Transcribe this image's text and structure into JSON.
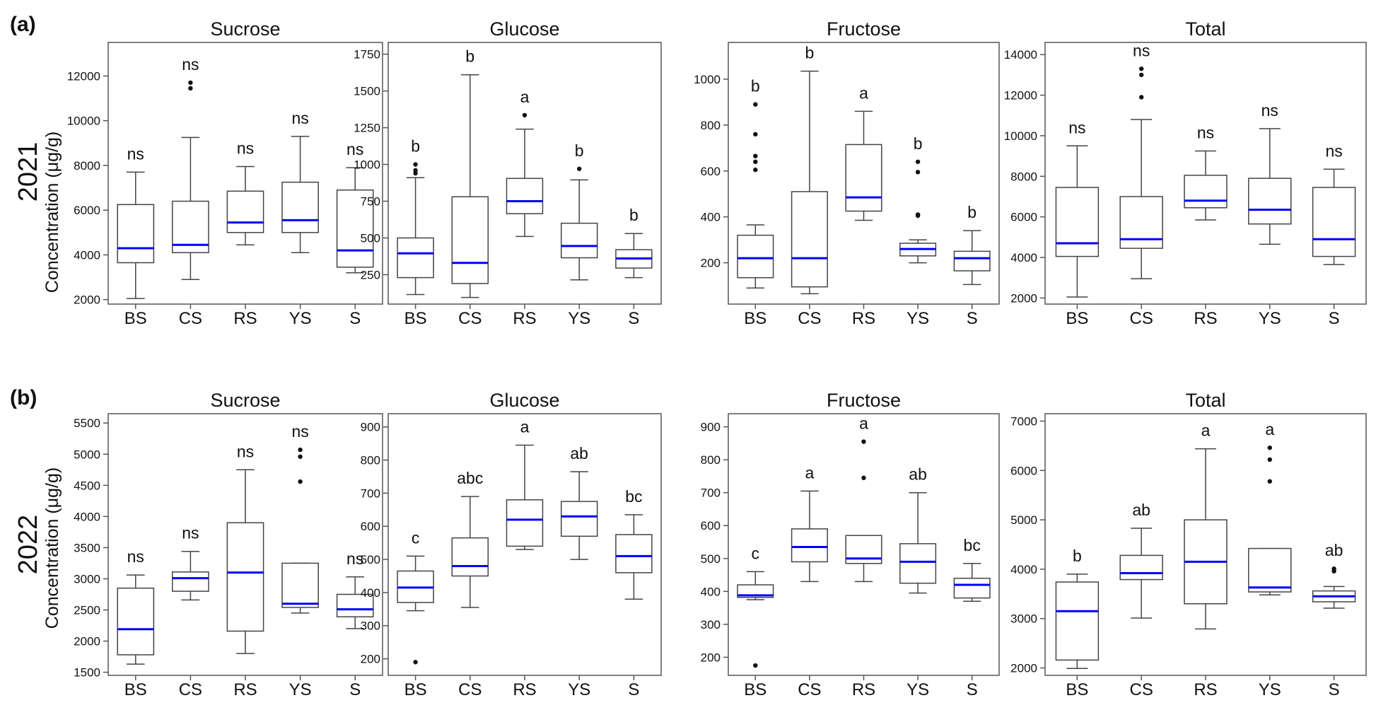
{
  "figure": {
    "rows": [
      {
        "label": "(a)",
        "year": "2021",
        "ylabel": "Concentration (μg/g)"
      },
      {
        "label": "(b)",
        "year": "2022",
        "ylabel": "Concentration (μg/g)"
      }
    ]
  },
  "chart_data": [
    {
      "type": "box",
      "title": "Sucrose",
      "row": 0,
      "categories": [
        "BS",
        "CS",
        "RS",
        "YS",
        "S"
      ],
      "ylim": [
        1800,
        13500
      ],
      "yticks": [
        2000,
        4000,
        6000,
        8000,
        10000,
        12000
      ],
      "median_color": "#0000ff",
      "boxes": [
        {
          "min": 2050,
          "q1": 3650,
          "median": 4300,
          "q3": 6250,
          "max": 7700,
          "outliers": [],
          "label": "ns"
        },
        {
          "min": 2900,
          "q1": 4100,
          "median": 4450,
          "q3": 6400,
          "max": 9250,
          "outliers": [
            11450,
            11700
          ],
          "label": "ns"
        },
        {
          "min": 4450,
          "q1": 5000,
          "median": 5450,
          "q3": 6850,
          "max": 7950,
          "outliers": [],
          "label": "ns"
        },
        {
          "min": 4100,
          "q1": 5000,
          "median": 5550,
          "q3": 7250,
          "max": 9300,
          "outliers": [],
          "label": "ns"
        },
        {
          "min": 3200,
          "q1": 3450,
          "median": 4200,
          "q3": 6900,
          "max": 7900,
          "outliers": [],
          "label": "ns"
        }
      ]
    },
    {
      "type": "box",
      "title": "Glucose",
      "row": 0,
      "categories": [
        "BS",
        "CS",
        "RS",
        "YS",
        "S"
      ],
      "ylim": [
        50,
        1830
      ],
      "yticks": [
        250,
        500,
        750,
        1000,
        1250,
        1500,
        1750
      ],
      "median_color": "#0000ff",
      "boxes": [
        {
          "min": 115,
          "q1": 230,
          "median": 395,
          "q3": 500,
          "max": 910,
          "outliers": [
            940,
            960,
            1000
          ],
          "label": "b"
        },
        {
          "min": 95,
          "q1": 190,
          "median": 330,
          "q3": 780,
          "max": 1610,
          "outliers": [],
          "label": "b"
        },
        {
          "min": 510,
          "q1": 665,
          "median": 750,
          "q3": 905,
          "max": 1240,
          "outliers": [
            1335
          ],
          "label": "a"
        },
        {
          "min": 215,
          "q1": 365,
          "median": 445,
          "q3": 600,
          "max": 895,
          "outliers": [
            970
          ],
          "label": "b"
        },
        {
          "min": 230,
          "q1": 295,
          "median": 360,
          "q3": 420,
          "max": 530,
          "outliers": [],
          "label": "b"
        }
      ]
    },
    {
      "type": "box",
      "title": "Fructose",
      "row": 0,
      "categories": [
        "BS",
        "CS",
        "RS",
        "YS",
        "S"
      ],
      "ylim": [
        20,
        1160
      ],
      "yticks": [
        200,
        400,
        600,
        800,
        1000
      ],
      "median_color": "#0000ff",
      "boxes": [
        {
          "min": 90,
          "q1": 135,
          "median": 220,
          "q3": 320,
          "max": 365,
          "outliers": [
            605,
            640,
            665,
            760,
            890
          ],
          "label": "b"
        },
        {
          "min": 65,
          "q1": 95,
          "median": 220,
          "q3": 510,
          "max": 1035,
          "outliers": [],
          "label": "b"
        },
        {
          "min": 385,
          "q1": 425,
          "median": 485,
          "q3": 715,
          "max": 860,
          "outliers": [],
          "label": "a"
        },
        {
          "min": 200,
          "q1": 230,
          "median": 260,
          "q3": 285,
          "max": 300,
          "outliers": [
            405,
            410,
            595,
            640
          ],
          "label": "b"
        },
        {
          "min": 105,
          "q1": 165,
          "median": 220,
          "q3": 250,
          "max": 340,
          "outliers": [],
          "label": "b"
        }
      ]
    },
    {
      "type": "box",
      "title": "Total",
      "row": 0,
      "categories": [
        "BS",
        "CS",
        "RS",
        "YS",
        "S"
      ],
      "ylim": [
        1700,
        14600
      ],
      "yticks": [
        2000,
        4000,
        6000,
        8000,
        10000,
        12000,
        14000
      ],
      "median_color": "#0000ff",
      "boxes": [
        {
          "min": 2050,
          "q1": 4050,
          "median": 4700,
          "q3": 7450,
          "max": 9500,
          "outliers": [],
          "label": "ns"
        },
        {
          "min": 2950,
          "q1": 4450,
          "median": 4900,
          "q3": 7000,
          "max": 10800,
          "outliers": [
            11900,
            13000,
            13300
          ],
          "label": "ns"
        },
        {
          "min": 5850,
          "q1": 6450,
          "median": 6800,
          "q3": 8050,
          "max": 9250,
          "outliers": [],
          "label": "ns"
        },
        {
          "min": 4650,
          "q1": 5650,
          "median": 6350,
          "q3": 7900,
          "max": 10350,
          "outliers": [],
          "label": "ns"
        },
        {
          "min": 3650,
          "q1": 4050,
          "median": 4900,
          "q3": 7450,
          "max": 8350,
          "outliers": [],
          "label": "ns"
        }
      ]
    },
    {
      "type": "box",
      "title": "Sucrose",
      "row": 1,
      "categories": [
        "BS",
        "CS",
        "RS",
        "YS",
        "S"
      ],
      "ylim": [
        1450,
        5650
      ],
      "yticks": [
        1500,
        2000,
        2500,
        3000,
        3500,
        4000,
        4500,
        5000,
        5500
      ],
      "median_color": "#0000ff",
      "boxes": [
        {
          "min": 1630,
          "q1": 1780,
          "median": 2190,
          "q3": 2850,
          "max": 3060,
          "outliers": [],
          "label": "ns"
        },
        {
          "min": 2660,
          "q1": 2800,
          "median": 3010,
          "q3": 3110,
          "max": 3440,
          "outliers": [],
          "label": "ns"
        },
        {
          "min": 1800,
          "q1": 2160,
          "median": 3100,
          "q3": 3900,
          "max": 4750,
          "outliers": [],
          "label": "ns"
        },
        {
          "min": 2450,
          "q1": 2540,
          "median": 2600,
          "q3": 3250,
          "max": 3250,
          "outliers": [
            4560,
            4960,
            5070
          ],
          "label": "ns"
        },
        {
          "min": 2200,
          "q1": 2390,
          "median": 2510,
          "q3": 2750,
          "max": 3030,
          "outliers": [],
          "label": "ns"
        }
      ]
    },
    {
      "type": "box",
      "title": "Glucose",
      "row": 1,
      "categories": [
        "BS",
        "CS",
        "RS",
        "YS",
        "S"
      ],
      "ylim": [
        150,
        940
      ],
      "yticks": [
        200,
        300,
        400,
        500,
        600,
        700,
        800,
        900
      ],
      "median_color": "#0000ff",
      "boxes": [
        {
          "min": 345,
          "q1": 370,
          "median": 415,
          "q3": 465,
          "max": 510,
          "outliers": [
            190
          ],
          "label": "c"
        },
        {
          "min": 355,
          "q1": 450,
          "median": 480,
          "q3": 565,
          "max": 690,
          "outliers": [],
          "label": "abc"
        },
        {
          "min": 530,
          "q1": 540,
          "median": 620,
          "q3": 680,
          "max": 845,
          "outliers": [],
          "label": "a"
        },
        {
          "min": 500,
          "q1": 570,
          "median": 630,
          "q3": 675,
          "max": 765,
          "outliers": [],
          "label": "ab"
        },
        {
          "min": 380,
          "q1": 460,
          "median": 510,
          "q3": 575,
          "max": 635,
          "outliers": [],
          "label": "bc"
        }
      ]
    },
    {
      "type": "box",
      "title": "Fructose",
      "row": 1,
      "categories": [
        "BS",
        "CS",
        "RS",
        "YS",
        "S"
      ],
      "ylim": [
        145,
        940
      ],
      "yticks": [
        200,
        300,
        400,
        500,
        600,
        700,
        800,
        900
      ],
      "median_color": "#0000ff",
      "boxes": [
        {
          "min": 375,
          "q1": 382,
          "median": 388,
          "q3": 420,
          "max": 460,
          "outliers": [
            175
          ],
          "label": "c"
        },
        {
          "min": 430,
          "q1": 490,
          "median": 535,
          "q3": 590,
          "max": 705,
          "outliers": [],
          "label": "a"
        },
        {
          "min": 430,
          "q1": 485,
          "median": 500,
          "q3": 570,
          "max": 570,
          "outliers": [
            745,
            855
          ],
          "label": "a"
        },
        {
          "min": 395,
          "q1": 425,
          "median": 490,
          "q3": 545,
          "max": 700,
          "outliers": [],
          "label": "ab"
        },
        {
          "min": 370,
          "q1": 380,
          "median": 420,
          "q3": 440,
          "max": 485,
          "outliers": [],
          "label": "bc"
        }
      ]
    },
    {
      "type": "box",
      "title": "Total",
      "row": 1,
      "categories": [
        "BS",
        "CS",
        "RS",
        "YS",
        "S"
      ],
      "ylim": [
        1850,
        7150
      ],
      "yticks": [
        2000,
        3000,
        4000,
        5000,
        6000,
        7000
      ],
      "median_color": "#0000ff",
      "boxes": [
        {
          "min": 1990,
          "q1": 2160,
          "median": 3150,
          "q3": 3740,
          "max": 3900,
          "outliers": [],
          "label": "b"
        },
        {
          "min": 3010,
          "q1": 3790,
          "median": 3920,
          "q3": 4280,
          "max": 4830,
          "outliers": [],
          "label": "ab"
        },
        {
          "min": 2790,
          "q1": 3300,
          "median": 4150,
          "q3": 5000,
          "max": 6440,
          "outliers": [],
          "label": "a"
        },
        {
          "min": 3480,
          "q1": 3540,
          "median": 3630,
          "q3": 4420,
          "max": 4420,
          "outliers": [
            5780,
            6220,
            6460
          ],
          "label": "a"
        },
        {
          "min": 3210,
          "q1": 3340,
          "median": 3450,
          "q3": 3560,
          "max": 3650,
          "outliers": [
            3960,
            4010
          ],
          "label": "ab"
        }
      ]
    }
  ]
}
